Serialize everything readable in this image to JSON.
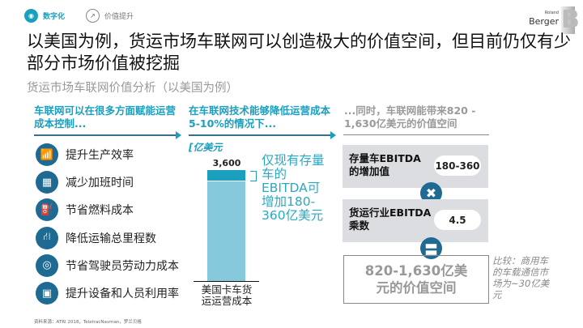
{
  "header": {
    "tag1": "数字化",
    "tag2": "价值提升",
    "logo_small": "Roland",
    "logo_big": "Berger",
    "logo_letter": "B"
  },
  "title": "以美国为例，货运市场车联网可以创造极大的价值空间，但目前仍仅有少部分市场价值被挖掘",
  "subtitle": "货运市场车联网价值分析（以美国为例）",
  "col1": {
    "header": "车联网可以在很多方面赋能运营成本控制...",
    "items": [
      {
        "icon": "chart-growth-icon",
        "label": "提升生产效率"
      },
      {
        "icon": "calendar-icon",
        "label": "减少加班时间"
      },
      {
        "icon": "fuel-pump-icon",
        "label": "节省燃料成本"
      },
      {
        "icon": "road-icon",
        "label": "降低运输总里程数"
      },
      {
        "icon": "steering-wheel-icon",
        "label": "节省驾驶员劳动力成本"
      },
      {
        "icon": "truck-icon",
        "label": "提升设备和人员利用率"
      }
    ]
  },
  "col2": {
    "header": "在车联网技术能够降低运营成本5-10%的情况下...",
    "unit": "[亿美元",
    "annotation": "仅现有存量车的EBITDA可增加180-360亿美元"
  },
  "chart_data": {
    "type": "bar",
    "categories": [
      "美国卡车货运运营成本"
    ],
    "values": [
      3600
    ],
    "data_labels": [
      "3,600"
    ],
    "highlight_range": [
      180,
      360
    ],
    "colors": {
      "bar": "#86c8dc",
      "highlight": "#1a9fbf"
    }
  },
  "col3": {
    "header": "...同时，车联网能带来820 - 1,630亿美元的价值空间",
    "box1_label": "存量车EBITDA的增加值",
    "box1_value": "180-360",
    "box2_label": "货运行业EBITDA乘数",
    "box2_value": "4.5",
    "result": "820-1,630亿美元的价值空间",
    "comparison": "比较：商用车的车载通信市场为~30亿美元"
  },
  "footer": "资料来源：ATRI 2018，TeletracNavman，罗兰贝格",
  "colors": {
    "accent": "#1a9fbf",
    "dark": "#1e6a92",
    "gray_box": "#dcdde0"
  }
}
